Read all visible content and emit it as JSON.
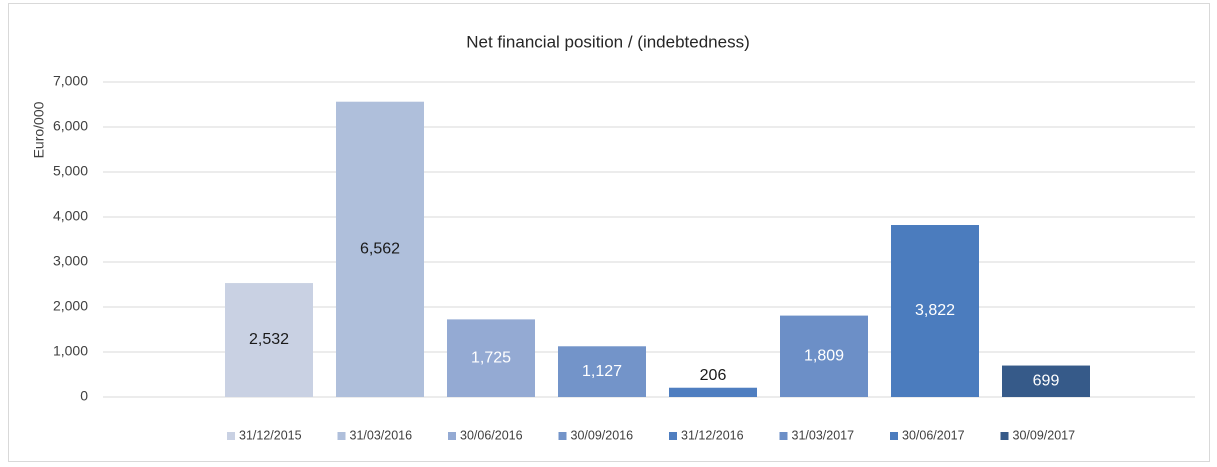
{
  "chart_data": {
    "type": "bar",
    "title": "Net financial position / (indebtedness)",
    "y_label": "Euro/000",
    "ylim": [
      0,
      7000
    ],
    "yticks": [
      {
        "value": 0,
        "label": "0"
      },
      {
        "value": 1000,
        "label": "1,000"
      },
      {
        "value": 2000,
        "label": "2,000"
      },
      {
        "value": 3000,
        "label": "3,000"
      },
      {
        "value": 4000,
        "label": "4,000"
      },
      {
        "value": 5000,
        "label": "5,000"
      },
      {
        "value": 6000,
        "label": "6,000"
      },
      {
        "value": 7000,
        "label": "7,000"
      }
    ],
    "grid": true,
    "legend": "bottom",
    "series": [
      {
        "name": "31/12/2015",
        "color": "#c9d1e3",
        "label_color": "#1a1a1a",
        "values": [
          2532
        ],
        "value_labels": [
          "2,532"
        ]
      },
      {
        "name": "31/03/2016",
        "color": "#afbfdb",
        "label_color": "#1a1a1a",
        "values": [
          6562
        ],
        "value_labels": [
          "6,562"
        ]
      },
      {
        "name": "30/06/2016",
        "color": "#94aad3",
        "label_color": "#ffffff",
        "values": [
          1725
        ],
        "value_labels": [
          "1,725"
        ]
      },
      {
        "name": "30/09/2016",
        "color": "#7394c9",
        "label_color": "#ffffff",
        "values": [
          1127
        ],
        "value_labels": [
          "1,127"
        ]
      },
      {
        "name": "31/12/2016",
        "color": "#4f7ec0",
        "label_color": "#1a1a1a",
        "values": [
          206
        ],
        "value_labels": [
          "206"
        ]
      },
      {
        "name": "31/03/2017",
        "color": "#6c8fc7",
        "label_color": "#ffffff",
        "values": [
          1809
        ],
        "value_labels": [
          "1,809"
        ]
      },
      {
        "name": "30/06/2017",
        "color": "#4b7cbe",
        "label_color": "#ffffff",
        "values": [
          3822
        ],
        "value_labels": [
          "3,822"
        ]
      },
      {
        "name": "30/09/2017",
        "color": "#365a89",
        "label_color": "#ffffff",
        "values": [
          699
        ],
        "value_labels": [
          "699"
        ]
      }
    ]
  }
}
